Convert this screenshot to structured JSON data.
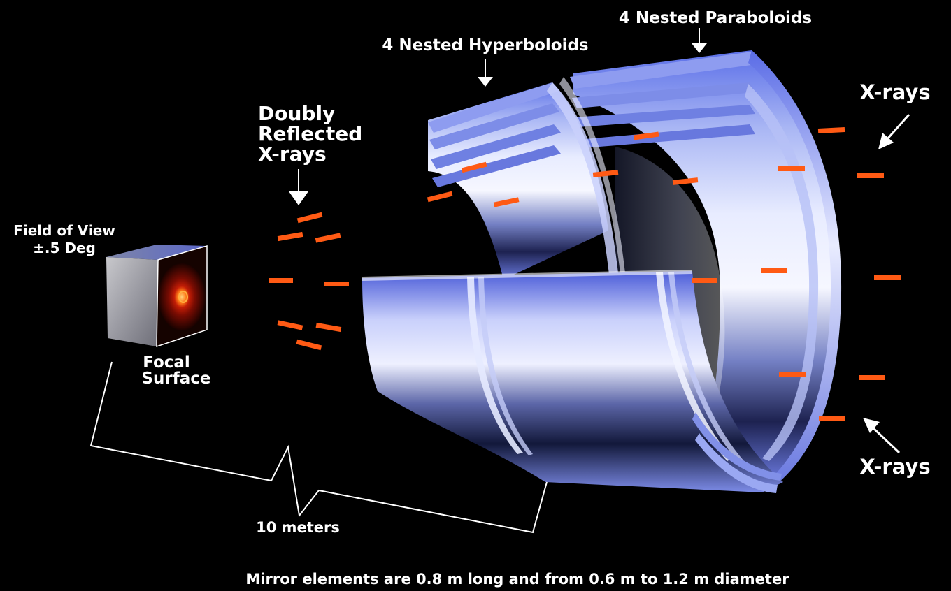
{
  "labels": {
    "paraboloids": "4 Nested Paraboloids",
    "hyperboloids": "4 Nested Hyperboloids",
    "doubly": [
      "Doubly",
      "Reflected",
      "X-rays"
    ],
    "fov": [
      "Field of View",
      "±.5 Deg"
    ],
    "focal": [
      "Focal",
      "Surface"
    ],
    "xrays_top": "X-rays",
    "xrays_bottom": "X-rays",
    "distance": "10 meters",
    "caption": "Mirror elements are 0.8 m long and from 0.6 m to 1.2 m diameter"
  },
  "colors": {
    "background": "#000000",
    "xray_dash": "#ff5a14",
    "mirror_blue": "#8f9ef0",
    "text": "#ffffff"
  },
  "icons": [
    "down-arrow-icon",
    "diagonal-arrow-icon"
  ]
}
